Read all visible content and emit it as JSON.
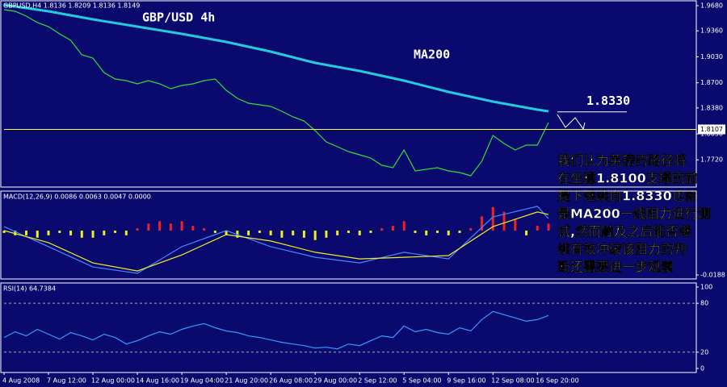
{
  "chart_data": [
    {
      "type": "line",
      "header": "GBPUSD,H4 1.8136 1.8209 1.8136 1.8149",
      "title": "GBP/USD 4h",
      "annotation": "MA200",
      "level": {
        "value": 1.833,
        "label": "1.8330"
      },
      "last_price": {
        "value": 1.8107,
        "label": "1.8107"
      },
      "last_price_color": "#ffff33",
      "comment": [
        "我们认为英镑的路径将",
        "在坐稳1.8100支撑的前",
        "提下继续向1.8330也就",
        "是MA200一线阻力进行测",
        "试,然而触及之后能否继",
        "续有效冲破该阻力的判",
        "断还需要进一步观察"
      ],
      "xlim": [
        0,
        62.3
      ],
      "ylim": [
        1.7374,
        1.9752
      ],
      "yticks": [
        {
          "value": 1.968,
          "label": "1.9680"
        },
        {
          "value": 1.936,
          "label": "1.9360"
        },
        {
          "value": 1.903,
          "label": "1.9030"
        },
        {
          "value": 1.87,
          "label": "1.8700"
        },
        {
          "value": 1.838,
          "label": "1.8380"
        },
        {
          "value": 1.805,
          "label": "1.8050"
        },
        {
          "value": 1.772,
          "label": "1.7720"
        }
      ],
      "x": [
        0,
        1,
        2,
        3,
        4,
        5,
        6,
        7,
        8,
        9,
        10,
        11,
        12,
        13,
        14,
        15,
        16,
        17,
        18,
        19,
        20,
        21,
        22,
        23,
        24,
        25,
        26,
        27,
        28,
        29,
        30,
        31,
        32,
        33,
        34,
        35,
        36,
        37,
        38,
        39,
        40,
        41,
        42,
        43,
        44,
        45,
        46,
        47,
        48,
        49
      ],
      "series": [
        {
          "color": "#33dd33",
          "values": [
            1.9629,
            1.9608,
            1.9547,
            1.9465,
            1.9414,
            1.9322,
            1.924,
            1.9055,
            1.9014,
            1.883,
            1.8748,
            1.8727,
            1.8686,
            1.8727,
            1.8686,
            1.8625,
            1.8666,
            1.8686,
            1.8727,
            1.8748,
            1.8604,
            1.8502,
            1.844,
            1.842,
            1.8399,
            1.8338,
            1.8266,
            1.8215,
            1.8092,
            1.7948,
            1.7887,
            1.7825,
            1.7784,
            1.7743,
            1.7651,
            1.762,
            1.7846,
            1.7579,
            1.76,
            1.762,
            1.7579,
            1.7559,
            1.7518,
            1.7702,
            1.803,
            1.7928,
            1.7846,
            1.7907,
            1.7907,
            1.8194
          ]
        },
        {
          "color": "#22ccdd",
          "x": [
            0,
            4,
            8,
            12,
            16,
            20,
            24,
            28,
            32,
            36,
            40,
            44,
            48,
            49
          ],
          "values": [
            1.969,
            1.9608,
            1.9506,
            1.9414,
            1.9322,
            1.9219,
            1.9096,
            1.8953,
            1.885,
            1.8727,
            1.8584,
            1.8461,
            1.8358,
            1.8338
          ]
        }
      ]
    },
    {
      "type": "combo",
      "title": "MACD(12,26,9) 0.0086 0.0063 0.0047 0.0000",
      "xlim": [
        0,
        62.3
      ],
      "ylim": [
        -0.0205,
        0.0171
      ],
      "yticks": [
        -0.0188
      ],
      "x": [
        0,
        1,
        2,
        3,
        4,
        5,
        6,
        7,
        8,
        9,
        10,
        11,
        12,
        13,
        14,
        15,
        16,
        17,
        18,
        19,
        20,
        21,
        22,
        23,
        24,
        25,
        26,
        27,
        28,
        29,
        30,
        31,
        32,
        33,
        34,
        35,
        36,
        37,
        38,
        39,
        40,
        41,
        42,
        43,
        44,
        45,
        46,
        47,
        48,
        49
      ],
      "series": [
        {
          "type": "bar",
          "color": "#ee2222",
          "negative_color": "#eeee22",
          "values": [
            -0.001,
            -0.002,
            -0.002,
            -0.003,
            -0.002,
            -0.001,
            -0.002,
            -0.003,
            -0.003,
            -0.002,
            -0.001,
            -0.002,
            0.001,
            0.003,
            0.004,
            0.003,
            0.004,
            0.002,
            0.001,
            -0.001,
            -0.002,
            -0.003,
            -0.002,
            -0.001,
            -0.002,
            -0.003,
            -0.002,
            -0.003,
            -0.004,
            -0.003,
            -0.002,
            -0.001,
            -0.002,
            -0.001,
            0.001,
            0.002,
            0.004,
            -0.001,
            -0.002,
            -0.001,
            -0.002,
            -0.001,
            0.001,
            0.006,
            0.01,
            0.008,
            0.005,
            -0.002,
            0.002,
            0.003
          ]
        },
        {
          "type": "line",
          "color": "#4488ff",
          "x": [
            0,
            4,
            8,
            12,
            16,
            20,
            24,
            28,
            32,
            36,
            40,
            44,
            48,
            49
          ],
          "values": [
            0.0017,
            -0.0068,
            -0.0154,
            -0.0181,
            -0.0068,
            0,
            -0.0068,
            -0.0113,
            -0.0137,
            -0.0092,
            -0.012,
            0.0058,
            0.0103,
            0.0051
          ]
        },
        {
          "type": "line",
          "color": "#eeee22",
          "x": [
            0,
            4,
            8,
            12,
            16,
            20,
            24,
            28,
            32,
            36,
            40,
            44,
            48,
            49
          ],
          "values": [
            0,
            -0.0051,
            -0.0137,
            -0.0171,
            -0.0103,
            -0.0017,
            -0.0044,
            -0.0092,
            -0.012,
            -0.0113,
            -0.0106,
            0.0017,
            0.0079,
            0.0068
          ]
        }
      ]
    },
    {
      "type": "line",
      "title": "RSI(14) 64.7384",
      "xlim": [
        0,
        62.3
      ],
      "ylim": [
        -5,
        105.9
      ],
      "yticks": [
        0,
        20,
        80,
        100
      ],
      "levels": [
        20,
        80
      ],
      "x": [
        0,
        1,
        2,
        3,
        4,
        5,
        6,
        7,
        8,
        9,
        10,
        11,
        12,
        13,
        14,
        15,
        16,
        17,
        18,
        19,
        20,
        21,
        22,
        23,
        24,
        25,
        26,
        27,
        28,
        29,
        30,
        31,
        32,
        33,
        34,
        35,
        36,
        37,
        38,
        39,
        40,
        41,
        42,
        43,
        44,
        45,
        46,
        47,
        48,
        49
      ],
      "xticks": [
        {
          "value": 0,
          "label": "4 Aug 2008"
        },
        {
          "value": 4,
          "label": "7 Aug 12:00"
        },
        {
          "value": 8,
          "label": "12 Aug 00:00"
        },
        {
          "value": 12,
          "label": "14 Aug 16:00"
        },
        {
          "value": 16,
          "label": "19 Aug 04:00"
        },
        {
          "value": 20,
          "label": "21 Aug 20:00"
        },
        {
          "value": 24,
          "label": "26 Aug 08:00"
        },
        {
          "value": 28,
          "label": "29 Aug 00:00"
        },
        {
          "value": 32,
          "label": "2 Sep 12:00"
        },
        {
          "value": 36,
          "label": "5 Sep 04:00"
        },
        {
          "value": 40,
          "label": "9 Sep 16:00"
        },
        {
          "value": 44,
          "label": "12 Sep 08:00"
        },
        {
          "value": 48,
          "label": "16 Sep 20:00"
        }
      ],
      "series": [
        {
          "color": "#3399ff",
          "values": [
            38,
            45,
            40,
            48,
            42,
            36,
            44,
            40,
            35,
            42,
            38,
            30,
            34,
            40,
            45,
            42,
            48,
            52,
            55,
            50,
            46,
            44,
            40,
            38,
            35,
            32,
            30,
            28,
            25,
            26,
            24,
            30,
            28,
            34,
            40,
            38,
            52,
            45,
            48,
            44,
            42,
            50,
            46,
            60,
            70,
            66,
            62,
            58,
            60,
            65
          ]
        }
      ]
    }
  ]
}
